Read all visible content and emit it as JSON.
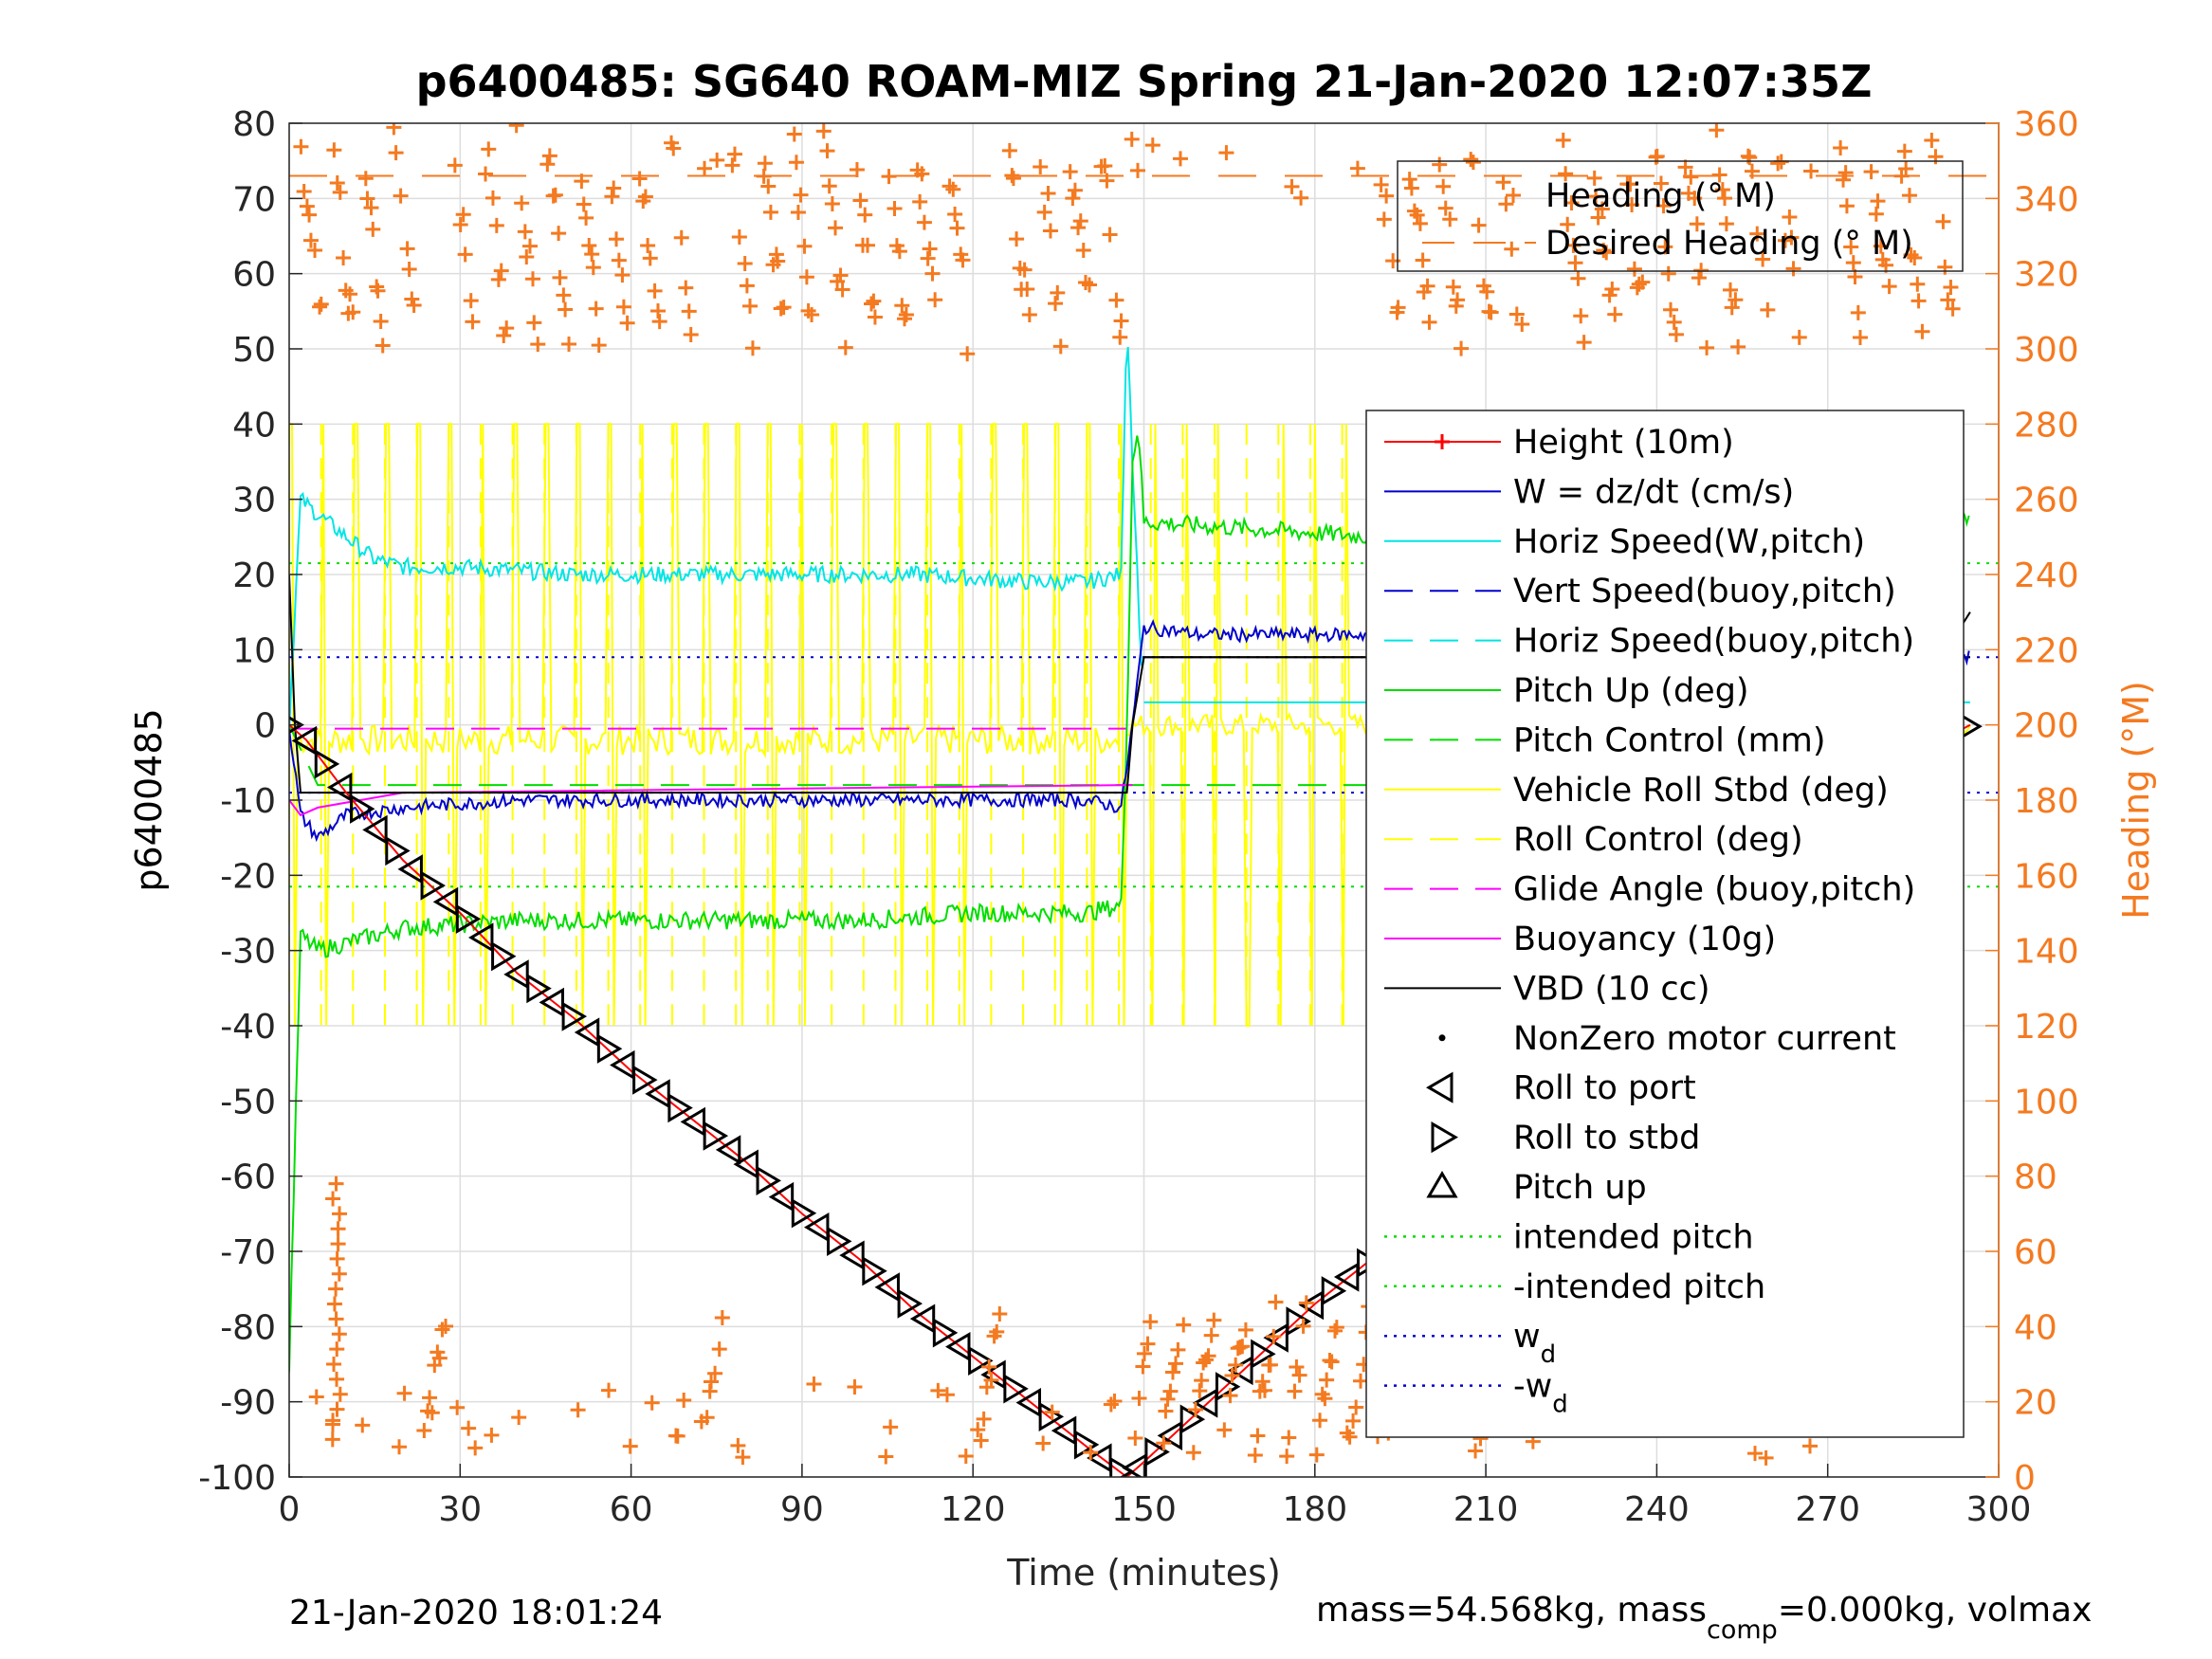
{
  "chart_data": {
    "type": "line",
    "title": "p6400485: SG640 ROAM-MIZ Spring 21-Jan-2020 12:07:35Z",
    "xlabel": "Time (minutes)",
    "ylabel": "p6400485",
    "y2label": "Heading (°M)",
    "xlim": [
      0,
      300
    ],
    "ylim": [
      -100,
      80
    ],
    "y2lim": [
      0,
      360
    ],
    "xticks": [
      "0",
      "30",
      "60",
      "90",
      "120",
      "150",
      "180",
      "210",
      "240",
      "270",
      "300"
    ],
    "yticks": [
      "80",
      "70",
      "60",
      "50",
      "40",
      "30",
      "20",
      "10",
      "0",
      "-10",
      "-20",
      "-30",
      "-40",
      "-50",
      "-60",
      "-70",
      "-80",
      "-90",
      "-100"
    ],
    "y2ticks": [
      "360",
      "340",
      "320",
      "300",
      "280",
      "260",
      "240",
      "220",
      "200",
      "180",
      "160",
      "140",
      "120",
      "100",
      "80",
      "60",
      "40",
      "20",
      "0"
    ],
    "grid": true,
    "footer_left": "21-Jan-2020 18:01:24",
    "footer_right": {
      "mass": "mass=54.568kg, mass",
      "comp_sub": "comp",
      "rest": "=0.000kg, volmax"
    },
    "colors": {
      "heading": "#f47a20",
      "height": "#ff0000",
      "w": "#0000cc",
      "horiz": "#00e5e5",
      "pitch": "#00dd00",
      "roll": "#ffff00",
      "glide": "#ff00ff",
      "vbd": "#000000"
    },
    "legend_heading": [
      {
        "label": "Heading (° M)",
        "style": "plus",
        "color": "#f47a20"
      },
      {
        "label": "Desired Heading (° M)",
        "style": "dash",
        "color": "#f47a20"
      }
    ],
    "legend_main": [
      {
        "label": "Height (10m)",
        "style": "line-plus",
        "color": "#ff0000"
      },
      {
        "label": "W = dz/dt (cm/s)",
        "style": "line",
        "color": "#0000cc"
      },
      {
        "label": "Horiz Speed(W,pitch)",
        "style": "line",
        "color": "#00e5e5"
      },
      {
        "label": "Vert Speed(buoy,pitch)",
        "style": "dash",
        "color": "#0000cc"
      },
      {
        "label": "Horiz Speed(buoy,pitch)",
        "style": "dash",
        "color": "#00e5e5"
      },
      {
        "label": "Pitch Up (deg)",
        "style": "line",
        "color": "#00dd00"
      },
      {
        "label": "Pitch Control (mm)",
        "style": "dash",
        "color": "#00dd00"
      },
      {
        "label": "Vehicle Roll Stbd (deg)",
        "style": "line",
        "color": "#ffff00"
      },
      {
        "label": "Roll Control (deg)",
        "style": "dash",
        "color": "#ffff00"
      },
      {
        "label": "Glide Angle (buoy,pitch)",
        "style": "dash",
        "color": "#ff00ff"
      },
      {
        "label": "Buoyancy (10g)",
        "style": "line",
        "color": "#ff00ff"
      },
      {
        "label": "VBD (10 cc)",
        "style": "line",
        "color": "#000000"
      },
      {
        "label": "NonZero motor current",
        "style": "dot",
        "color": "#000000"
      },
      {
        "label": "Roll to port",
        "style": "tri-left",
        "color": "#000000"
      },
      {
        "label": "Roll to stbd",
        "style": "tri-right",
        "color": "#000000"
      },
      {
        "label": "Pitch up",
        "style": "tri-up",
        "color": "#000000"
      },
      {
        "label": "intended pitch",
        "style": "dot-line",
        "color": "#00dd00"
      },
      {
        "label": "-intended pitch",
        "style": "dot-line",
        "color": "#00dd00"
      },
      {
        "label": "w",
        "sub": "d",
        "style": "dot-line",
        "color": "#0000cc"
      },
      {
        "label": "-w",
        "sub": "d",
        "style": "dot-line",
        "color": "#0000cc"
      }
    ],
    "series": [
      {
        "name": "Height (10m)",
        "axis": "left",
        "x": [
          0,
          3,
          10,
          20,
          30,
          40,
          50,
          60,
          70,
          80,
          90,
          100,
          110,
          120,
          130,
          140,
          147,
          150,
          160,
          170,
          180,
          190,
          200,
          210,
          220,
          230,
          240,
          250,
          260,
          270,
          280,
          290,
          295
        ],
        "y": [
          0,
          -2,
          -9,
          -18,
          -25,
          -33,
          -39,
          -46,
          -52,
          -58,
          -65,
          -71,
          -78,
          -84,
          -90,
          -96,
          -100,
          -98,
          -91,
          -84,
          -77,
          -71,
          -64,
          -57,
          -49,
          -42,
          -36,
          -29,
          -22,
          -14,
          -7,
          -2,
          0
        ]
      },
      {
        "name": "W = dz/dt (cm/s)",
        "axis": "left",
        "x": [
          0,
          2,
          5,
          10,
          20,
          40,
          60,
          80,
          100,
          120,
          140,
          146,
          148,
          150,
          160,
          180,
          200,
          220,
          240,
          260,
          280,
          290,
          295
        ],
        "y": [
          0,
          -12,
          -15,
          -12,
          -11,
          -10,
          -10,
          -10,
          -10,
          -10,
          -10,
          -11,
          0,
          13,
          12,
          12,
          12,
          12,
          12,
          12,
          11,
          10,
          9
        ]
      },
      {
        "name": "Horiz Speed(W,pitch)",
        "axis": "left",
        "x": [
          0,
          2,
          5,
          10,
          15,
          20,
          30,
          50,
          70,
          90,
          110,
          130,
          140,
          146,
          147,
          148,
          150
        ],
        "y": [
          0,
          30,
          28,
          25,
          22,
          21,
          21,
          20,
          20,
          20,
          20,
          19,
          19,
          20,
          55,
          35,
          0
        ]
      },
      {
        "name": "Pitch Up (deg)",
        "axis": "left",
        "x": [
          0,
          2,
          5,
          10,
          20,
          40,
          60,
          80,
          100,
          120,
          140,
          146,
          147,
          148,
          149,
          150,
          170,
          190,
          210,
          230,
          250,
          270,
          285,
          290,
          295
        ],
        "y": [
          -85,
          -28,
          -30,
          -29,
          -27,
          -26,
          -26,
          -26,
          -26,
          -25,
          -25,
          -24,
          0,
          35,
          40,
          27,
          26,
          25,
          25,
          24,
          24,
          24,
          24,
          26,
          28
        ]
      },
      {
        "name": "Pitch Control (mm)",
        "axis": "left",
        "x": [
          0,
          5,
          20,
          60,
          100,
          147,
          150,
          200,
          260,
          295
        ],
        "y": [
          0,
          -8,
          -8,
          -8,
          -8,
          -8,
          -8,
          -8,
          -8,
          -8
        ]
      },
      {
        "name": "VBD (10 cc)",
        "axis": "left",
        "x": [
          0,
          1,
          2,
          5,
          147,
          148,
          150,
          290,
          295
        ],
        "y": [
          20,
          0,
          -9,
          -9,
          -9,
          0,
          9,
          9,
          15
        ]
      },
      {
        "name": "Buoyancy (10g)",
        "axis": "left",
        "x": [
          0,
          2,
          5,
          20,
          147,
          148
        ],
        "y": [
          -10,
          -12,
          -11,
          -9,
          -8,
          -8
        ]
      },
      {
        "name": "Horiz Speed(buoy,pitch)",
        "axis": "left",
        "x": [
          150,
          295
        ],
        "y": [
          3,
          3
        ]
      },
      {
        "name": "Vert Speed(buoy,pitch)",
        "axis": "left",
        "x": [
          150,
          295
        ],
        "y": [
          9,
          9
        ]
      },
      {
        "name": "Glide Angle (buoy,pitch)",
        "axis": "left",
        "x": [
          0,
          147
        ],
        "y": [
          -0.5,
          -0.5
        ]
      },
      {
        "name": "intended pitch",
        "axis": "left",
        "x": [
          0,
          300
        ],
        "y": [
          21.5,
          21.5
        ]
      },
      {
        "name": "-intended pitch",
        "axis": "left",
        "x": [
          0,
          300
        ],
        "y": [
          -21.5,
          -21.5
        ]
      },
      {
        "name": "w",
        "axis": "left",
        "x": [
          0,
          300
        ],
        "y": [
          9,
          9
        ]
      },
      {
        "name": "-w",
        "axis": "left",
        "x": [
          0,
          300
        ],
        "y": [
          -9,
          -9
        ]
      },
      {
        "name": "Desired Heading (° M)",
        "axis": "right",
        "x": [
          0,
          300
        ],
        "y": [
          346,
          346
        ]
      },
      {
        "name": "Vehicle Roll Stbd (deg)",
        "axis": "left",
        "x": [
          0,
          147
        ],
        "y": [
          40,
          -40
        ]
      }
    ]
  }
}
